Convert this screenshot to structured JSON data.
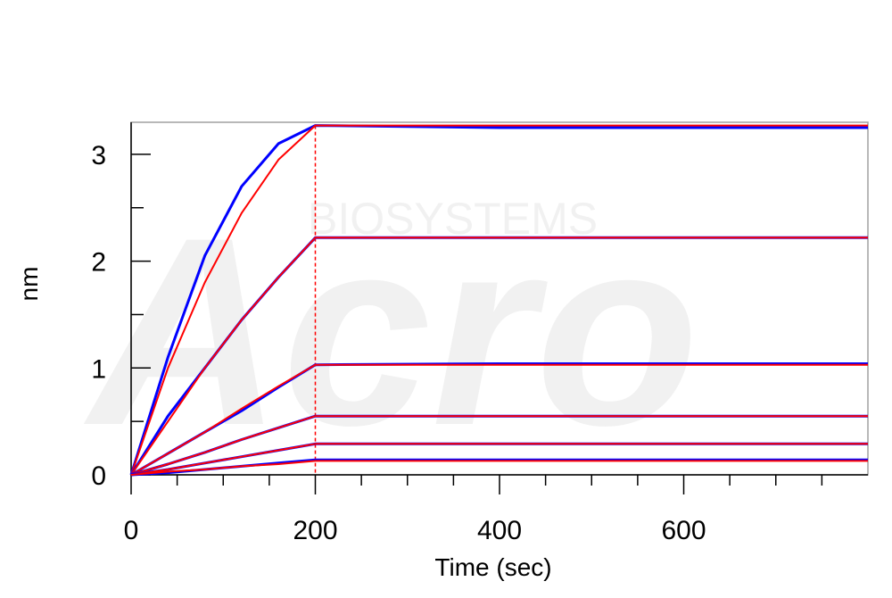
{
  "chart_data": {
    "type": "line",
    "title": "",
    "xlabel": "Time (sec)",
    "ylabel": "nm",
    "xlim": [
      0,
      800
    ],
    "ylim": [
      0,
      3.3
    ],
    "x_ticks": [
      0,
      200,
      400,
      600
    ],
    "x_ticklabels": [
      "0",
      "200",
      "400",
      "600"
    ],
    "y_ticks": [
      0,
      1,
      2,
      3
    ],
    "y_ticklabels": [
      "0",
      "1",
      "2",
      "3"
    ],
    "association_end": 200,
    "grid": false,
    "colors": {
      "measured": "#0000ff",
      "fit": "#ff0000",
      "axis": "#000000",
      "frame": "#a0a0a0"
    },
    "watermark": {
      "logo_text": "Acro",
      "sub_text": "BIOSYSTEMS"
    },
    "series": [
      {
        "plateau": 3.27,
        "x": [
          0,
          40,
          80,
          120,
          160,
          200,
          400,
          600,
          800
        ],
        "measured": [
          0.0,
          1.1,
          2.05,
          2.7,
          3.1,
          3.27,
          3.25,
          3.25,
          3.25
        ],
        "fit": [
          0.0,
          1.0,
          1.8,
          2.45,
          2.95,
          3.27,
          3.27,
          3.27,
          3.27
        ]
      },
      {
        "plateau": 2.22,
        "x": [
          0,
          40,
          80,
          120,
          160,
          200,
          400,
          600,
          800
        ],
        "measured": [
          0.0,
          0.55,
          1.0,
          1.45,
          1.85,
          2.22,
          2.22,
          2.22,
          2.22
        ],
        "fit": [
          0.0,
          0.5,
          1.0,
          1.45,
          1.85,
          2.22,
          2.22,
          2.22,
          2.22
        ]
      },
      {
        "plateau": 1.03,
        "x": [
          0,
          40,
          80,
          120,
          160,
          200,
          400,
          600,
          800
        ],
        "measured": [
          0.0,
          0.2,
          0.4,
          0.6,
          0.82,
          1.03,
          1.04,
          1.04,
          1.04
        ],
        "fit": [
          0.0,
          0.2,
          0.4,
          0.62,
          0.83,
          1.03,
          1.03,
          1.03,
          1.03
        ]
      },
      {
        "plateau": 0.55,
        "x": [
          0,
          40,
          80,
          120,
          160,
          200,
          400,
          600,
          800
        ],
        "measured": [
          0.0,
          0.1,
          0.21,
          0.33,
          0.44,
          0.55,
          0.55,
          0.55,
          0.55
        ],
        "fit": [
          0.0,
          0.1,
          0.21,
          0.33,
          0.44,
          0.55,
          0.55,
          0.55,
          0.55
        ]
      },
      {
        "plateau": 0.29,
        "x": [
          0,
          40,
          80,
          120,
          160,
          200,
          400,
          600,
          800
        ],
        "measured": [
          0.0,
          0.05,
          0.11,
          0.17,
          0.23,
          0.29,
          0.29,
          0.29,
          0.29
        ],
        "fit": [
          0.0,
          0.05,
          0.11,
          0.17,
          0.23,
          0.29,
          0.29,
          0.29,
          0.29
        ]
      },
      {
        "plateau": 0.13,
        "x": [
          0,
          40,
          80,
          120,
          160,
          200,
          400,
          600,
          800
        ],
        "measured": [
          0.0,
          0.02,
          0.05,
          0.08,
          0.11,
          0.14,
          0.14,
          0.14,
          0.14
        ],
        "fit": [
          0.0,
          0.03,
          0.05,
          0.08,
          0.1,
          0.13,
          0.13,
          0.13,
          0.13
        ]
      }
    ]
  }
}
